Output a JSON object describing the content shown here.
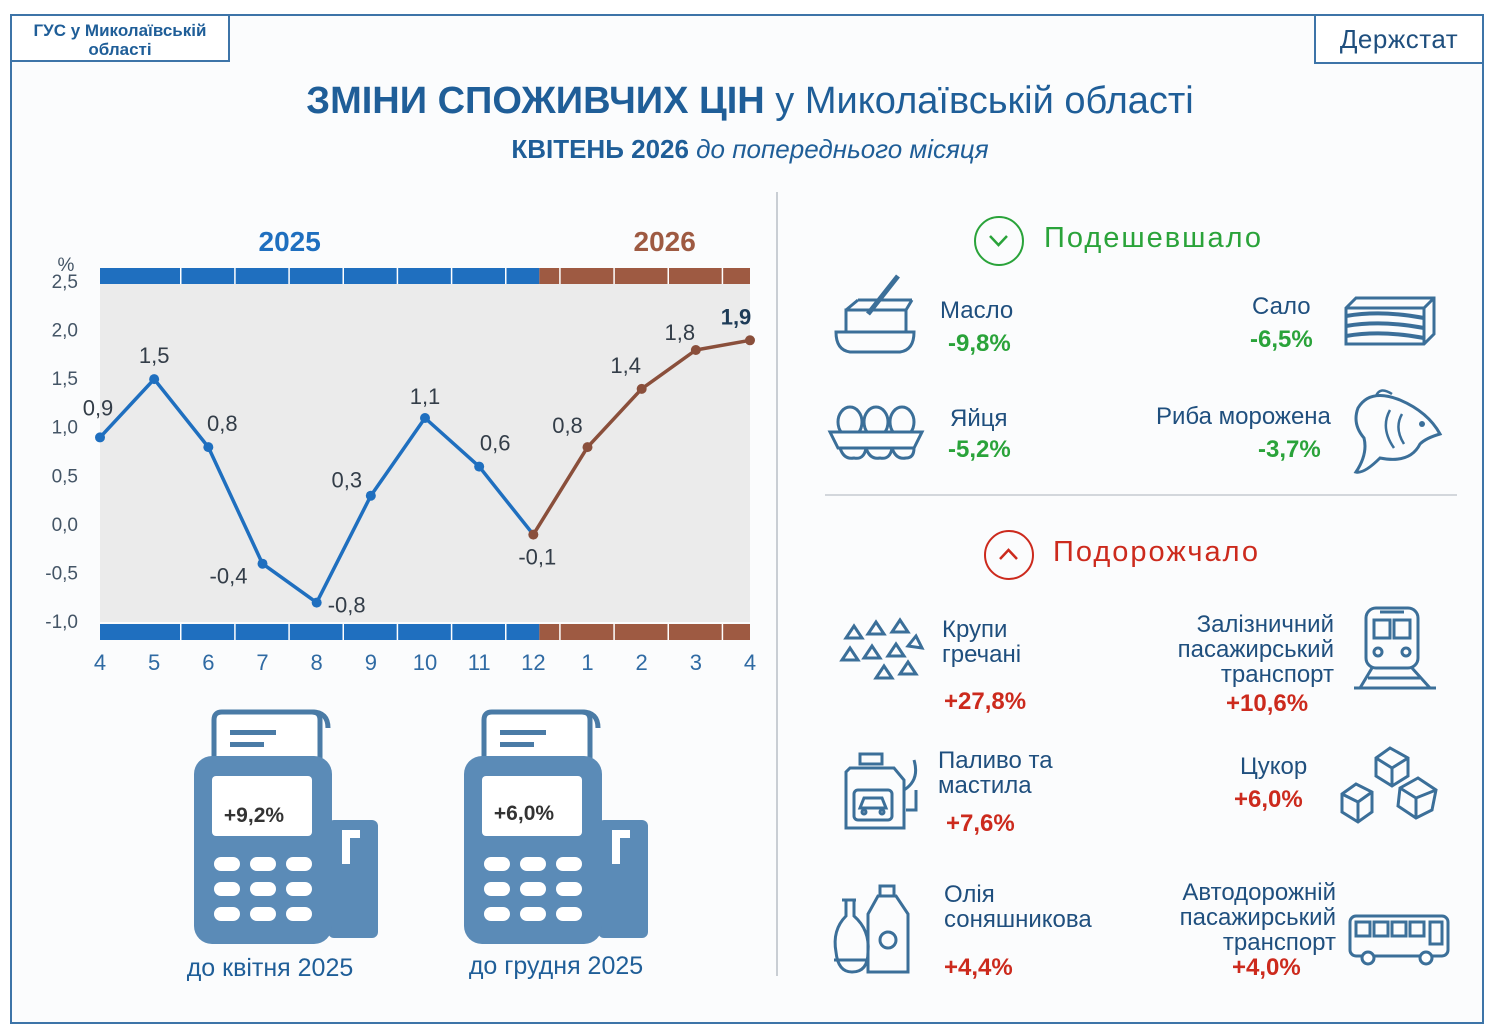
{
  "header": {
    "agency": "ГУС у Миколаївській області",
    "logo": "Держстат",
    "title_bold": "ЗМІНИ СПОЖИВЧИХ ЦІН",
    "title_rest": " у Миколаївській області",
    "subtitle_bold": "КВІТЕНЬ 2026",
    "subtitle_italic": " до попереднього місяця"
  },
  "colors": {
    "blue": "#1f6fbf",
    "brown": "#9e5a42",
    "green": "#2aa33a",
    "red": "#cc2a1d",
    "icon": "#3b6f99"
  },
  "chart_data": {
    "type": "line",
    "ylabel": "%",
    "ylim": [
      -1.0,
      2.5
    ],
    "yticks": [
      "2,5",
      "2,0",
      "1,5",
      "1,0",
      "0,5",
      "0,0",
      "-0,5",
      "-1,0"
    ],
    "categories": [
      "4",
      "5",
      "6",
      "7",
      "8",
      "9",
      "10",
      "11",
      "12",
      "1",
      "2",
      "3",
      "4"
    ],
    "years": [
      {
        "label": "2025",
        "from": 0,
        "to": 8
      },
      {
        "label": "2026",
        "from": 8,
        "to": 12
      }
    ],
    "values": [
      0.9,
      1.5,
      0.8,
      -0.4,
      -0.8,
      0.3,
      1.1,
      0.6,
      -0.1,
      0.8,
      1.4,
      1.8,
      1.9
    ],
    "data_labels": [
      "0,9",
      "1,5",
      "0,8",
      "-0,4",
      "-0,8",
      "0,3",
      "1,1",
      "0,6",
      "-0,1",
      "0,8",
      "1,4",
      "1,8",
      "1,9"
    ],
    "grid": false
  },
  "terminals": [
    {
      "value": "+9,2%",
      "caption": "до квітня 2025"
    },
    {
      "value": "+6,0%",
      "caption": "до грудня 2025"
    }
  ],
  "cheaper": {
    "heading": "Подешевшало",
    "items": [
      {
        "name": "Масло",
        "value": "-9,8%",
        "icon": "butter-icon"
      },
      {
        "name": "Сало",
        "value": "-6,5%",
        "icon": "lard-icon"
      },
      {
        "name": "Яйця",
        "value": "-5,2%",
        "icon": "eggs-icon"
      },
      {
        "name": "Риба морожена",
        "value": "-3,7%",
        "icon": "fish-icon"
      }
    ]
  },
  "pricier": {
    "heading": "Подорожчало",
    "items": [
      {
        "name_lines": [
          "Крупи",
          "гречані"
        ],
        "value": "+27,8%",
        "icon": "buckwheat-icon"
      },
      {
        "name_lines": [
          "Залізничний",
          "пасажирський",
          "транспорт"
        ],
        "value": "+10,6%",
        "icon": "train-icon"
      },
      {
        "name_lines": [
          "Паливо та",
          "мастила"
        ],
        "value": "+7,6%",
        "icon": "fuel-icon"
      },
      {
        "name_lines": [
          "Цукор"
        ],
        "value": "+6,0%",
        "icon": "sugar-icon"
      },
      {
        "name_lines": [
          "Олія",
          "соняшникова"
        ],
        "value": "+4,4%",
        "icon": "oil-icon"
      },
      {
        "name_lines": [
          "Автодорожній",
          "пасажирський",
          "транспорт"
        ],
        "value": "+4,0%",
        "icon": "bus-icon"
      }
    ]
  }
}
